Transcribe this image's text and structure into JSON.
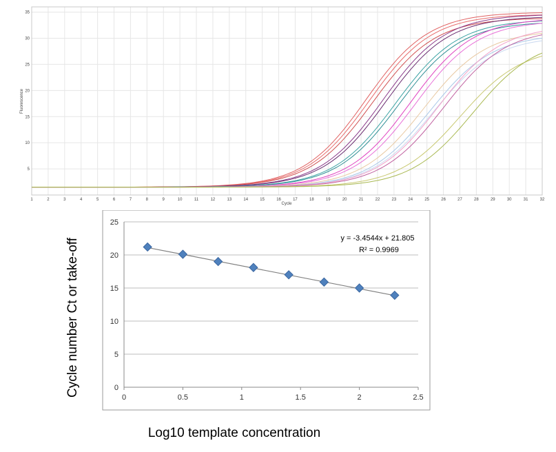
{
  "chart_data": [
    {
      "type": "line",
      "xlabel": "Cycle",
      "ylabel": "Fluorescence",
      "xlim": [
        1,
        32
      ],
      "ylim": [
        0,
        36
      ],
      "x_ticks": [
        "1",
        "2",
        "3",
        "4",
        "5",
        "6",
        "7",
        "8",
        "9",
        "10",
        "11",
        "12",
        "13",
        "14",
        "15",
        "16",
        "17",
        "18",
        "19",
        "20",
        "21",
        "22",
        "23",
        "24",
        "25",
        "26",
        "27",
        "28",
        "29",
        "30",
        "31",
        "32"
      ],
      "y_ticks": [
        "5",
        "10",
        "15",
        "20",
        "25",
        "30",
        "35"
      ],
      "grid": true,
      "baseline": 1.5,
      "series": [
        {
          "color": "#e06060",
          "plateau": 35.0,
          "midpoint": 21.3,
          "slope": 1.9
        },
        {
          "color": "#e86a6a",
          "plateau": 34.6,
          "midpoint": 21.5,
          "slope": 1.9
        },
        {
          "color": "#d05050",
          "plateau": 33.9,
          "midpoint": 21.7,
          "slope": 1.9
        },
        {
          "color": "#8a3a8a",
          "plateau": 34.6,
          "midpoint": 22.3,
          "slope": 1.9
        },
        {
          "color": "#6a2c70",
          "plateau": 34.2,
          "midpoint": 22.5,
          "slope": 1.9
        },
        {
          "color": "#3aa3a3",
          "plateau": 33.6,
          "midpoint": 23.1,
          "slope": 1.9
        },
        {
          "color": "#2f8f95",
          "plateau": 33.2,
          "midpoint": 23.3,
          "slope": 1.9
        },
        {
          "color": "#e040c0",
          "plateau": 33.9,
          "midpoint": 24.0,
          "slope": 1.9
        },
        {
          "color": "#e870d8",
          "plateau": 33.4,
          "midpoint": 24.3,
          "slope": 1.9
        },
        {
          "color": "#e8c8a0",
          "plateau": 31.6,
          "midpoint": 24.8,
          "slope": 1.9
        },
        {
          "color": "#a8c8e8",
          "plateau": 30.8,
          "midpoint": 25.2,
          "slope": 1.9
        },
        {
          "color": "#c8d8f0",
          "plateau": 30.4,
          "midpoint": 25.4,
          "slope": 1.9
        },
        {
          "color": "#f2a0c8",
          "plateau": 32.4,
          "midpoint": 25.7,
          "slope": 1.9
        },
        {
          "color": "#c060a0",
          "plateau": 31.9,
          "midpoint": 26.0,
          "slope": 1.9
        },
        {
          "color": "#c8c870",
          "plateau": 28.4,
          "midpoint": 27.0,
          "slope": 1.9
        },
        {
          "color": "#a8b850",
          "plateau": 30.0,
          "midpoint": 27.8,
          "slope": 1.9
        }
      ]
    },
    {
      "type": "scatter",
      "xlabel": "Log10 template concentration",
      "ylabel": "Cycle number  Ct or take-off",
      "xlim": [
        0,
        2.5
      ],
      "ylim": [
        0,
        25
      ],
      "x_ticks": [
        "0",
        "0.5",
        "1",
        "1.5",
        "2",
        "2.5"
      ],
      "y_ticks": [
        "0",
        "5",
        "10",
        "15",
        "20",
        "25"
      ],
      "grid": true,
      "marker_color": "#4f81bd",
      "x": [
        0.2,
        0.5,
        0.8,
        1.1,
        1.4,
        1.7,
        2.0,
        2.3
      ],
      "y": [
        21.2,
        20.1,
        19.0,
        18.1,
        17.0,
        15.9,
        15.0,
        13.9
      ],
      "trendline": {
        "slope": -3.4544,
        "intercept": 21.805
      },
      "equation": "y = -3.4544x + 21.805",
      "r_squared": "R² = 0.9969"
    }
  ]
}
